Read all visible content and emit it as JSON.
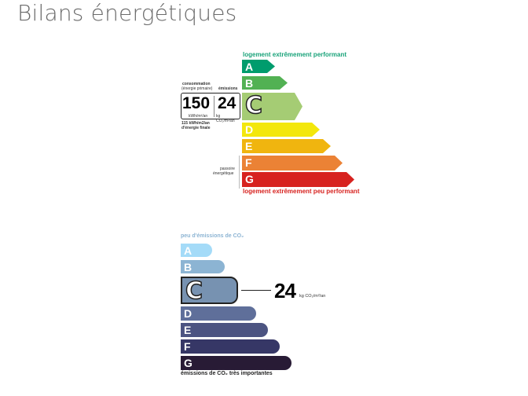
{
  "title": "Bilans énergétiques",
  "dpe": {
    "top_label": "logement extrêmement performant",
    "bottom_label": "logement extrêmement peu performant",
    "classes": [
      {
        "letter": "A",
        "color": "#009c6d"
      },
      {
        "letter": "B",
        "color": "#52b153"
      },
      {
        "letter": "C",
        "color": "#a5cc74"
      },
      {
        "letter": "D",
        "color": "#f3e70c"
      },
      {
        "letter": "E",
        "color": "#f0b50f"
      },
      {
        "letter": "F",
        "color": "#eb8235"
      },
      {
        "letter": "G",
        "color": "#d7221f"
      }
    ],
    "current_class": "C",
    "consumption_label": "consommation",
    "consumption_sub": "(énergie primaire)",
    "emissions_label": "émissions",
    "consumption_value": "150",
    "consumption_unit": "kWh/m²/an",
    "emissions_value": "24",
    "emissions_unit": "kg CO₂/m²/an",
    "final_energy_line1": "115 kWh/m2/an",
    "final_energy_line2": "d'énergie finale",
    "passoire_line1": "passoire",
    "passoire_line2": "énergétique"
  },
  "ges": {
    "top_label": "peu d'émissions de CO₂",
    "bottom_label": "émissions de CO₂ très importantes",
    "classes": [
      {
        "letter": "A",
        "color": "#a4dbf8"
      },
      {
        "letter": "B",
        "color": "#8cb4d3"
      },
      {
        "letter": "C",
        "color": "#7792b1"
      },
      {
        "letter": "D",
        "color": "#5f6f9a"
      },
      {
        "letter": "E",
        "color": "#4c5481"
      },
      {
        "letter": "F",
        "color": "#363766"
      },
      {
        "letter": "G",
        "color": "#281b35"
      }
    ],
    "current_class": "C",
    "value": "24",
    "unit": "kg CO₂/m²/an"
  }
}
